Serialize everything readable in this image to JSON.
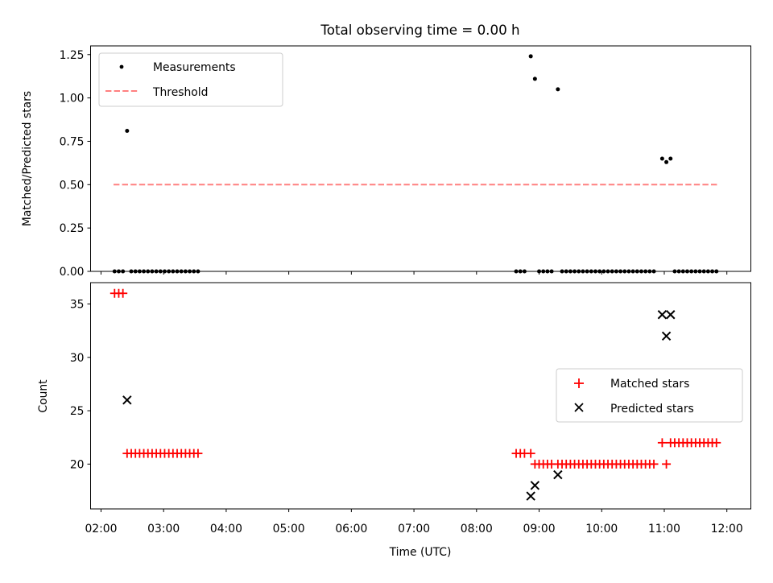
{
  "chart_data": [
    {
      "type": "scatter",
      "title": "Total observing time = 0.00 h",
      "ylabel": "Matched/Predicted stars",
      "ylim": [
        0,
        1.3
      ],
      "yticks": [
        0,
        0.25,
        0.5,
        0.75,
        1.0,
        1.25
      ],
      "ytick_labels": [
        "0.00",
        "0.25",
        "0.50",
        "0.75",
        "1.00",
        "1.25"
      ],
      "legend": {
        "placement": "top-left",
        "entries": [
          "Measurements",
          "Threshold"
        ]
      },
      "threshold": {
        "name": "Threshold",
        "value": 0.5,
        "x_range": [
          "02:12",
          "11:52"
        ],
        "color": "#ff8080"
      },
      "series": [
        {
          "name": "Measurements",
          "color": "#000000",
          "points": [
            [
              "02:13",
              0
            ],
            [
              "02:17",
              0
            ],
            [
              "02:21",
              0
            ],
            [
              "02:25",
              0.81
            ],
            [
              "02:29",
              0
            ],
            [
              "02:33",
              0
            ],
            [
              "02:37",
              0
            ],
            [
              "02:41",
              0
            ],
            [
              "02:45",
              0
            ],
            [
              "02:49",
              0
            ],
            [
              "02:53",
              0
            ],
            [
              "02:57",
              0
            ],
            [
              "03:01",
              0
            ],
            [
              "03:05",
              0
            ],
            [
              "03:09",
              0
            ],
            [
              "03:13",
              0
            ],
            [
              "03:17",
              0
            ],
            [
              "03:21",
              0
            ],
            [
              "03:25",
              0
            ],
            [
              "03:29",
              0
            ],
            [
              "03:33",
              0
            ],
            [
              "08:38",
              0
            ],
            [
              "08:42",
              0
            ],
            [
              "08:46",
              0
            ],
            [
              "08:52",
              1.24
            ],
            [
              "08:56",
              1.11
            ],
            [
              "09:00",
              0
            ],
            [
              "09:04",
              0
            ],
            [
              "09:08",
              0
            ],
            [
              "09:12",
              0
            ],
            [
              "09:18",
              1.05
            ],
            [
              "09:22",
              0
            ],
            [
              "09:26",
              0
            ],
            [
              "09:30",
              0
            ],
            [
              "09:34",
              0
            ],
            [
              "09:38",
              0
            ],
            [
              "09:42",
              0
            ],
            [
              "09:46",
              0
            ],
            [
              "09:50",
              0
            ],
            [
              "09:54",
              0
            ],
            [
              "09:58",
              0
            ],
            [
              "10:02",
              0
            ],
            [
              "10:06",
              0
            ],
            [
              "10:10",
              0
            ],
            [
              "10:14",
              0
            ],
            [
              "10:18",
              0
            ],
            [
              "10:22",
              0
            ],
            [
              "10:26",
              0
            ],
            [
              "10:30",
              0
            ],
            [
              "10:34",
              0
            ],
            [
              "10:38",
              0
            ],
            [
              "10:42",
              0
            ],
            [
              "10:46",
              0
            ],
            [
              "10:50",
              0
            ],
            [
              "10:58",
              0.65
            ],
            [
              "11:02",
              0.63
            ],
            [
              "11:06",
              0.65
            ],
            [
              "11:10",
              0
            ],
            [
              "11:14",
              0
            ],
            [
              "11:18",
              0
            ],
            [
              "11:22",
              0
            ],
            [
              "11:26",
              0
            ],
            [
              "11:30",
              0
            ],
            [
              "11:34",
              0
            ],
            [
              "11:38",
              0
            ],
            [
              "11:42",
              0
            ],
            [
              "11:46",
              0
            ],
            [
              "11:50",
              0
            ]
          ]
        }
      ]
    },
    {
      "type": "scatter",
      "xlabel": "Time (UTC)",
      "ylabel": "Count",
      "ylim": [
        15.8,
        37
      ],
      "yticks": [
        20,
        25,
        30,
        35
      ],
      "ytick_labels": [
        "20",
        "25",
        "30",
        "35"
      ],
      "xlim": [
        "01:50",
        "12:23"
      ],
      "xticks": [
        "02:00",
        "03:00",
        "04:00",
        "05:00",
        "06:00",
        "07:00",
        "08:00",
        "09:00",
        "10:00",
        "11:00",
        "12:00"
      ],
      "xtick_labels": [
        "02:00",
        "03:00",
        "04:00",
        "05:00",
        "06:00",
        "07:00",
        "08:00",
        "09:00",
        "10:00",
        "11:00",
        "12:00"
      ],
      "legend": {
        "placement": "center-right",
        "entries": [
          "Matched stars",
          "Predicted stars"
        ]
      },
      "series": [
        {
          "name": "Matched stars",
          "marker": "+",
          "color": "#ff0000",
          "points": [
            [
              "02:13",
              36
            ],
            [
              "02:17",
              36
            ],
            [
              "02:21",
              36
            ],
            [
              "02:25",
              21
            ],
            [
              "02:29",
              21
            ],
            [
              "02:33",
              21
            ],
            [
              "02:37",
              21
            ],
            [
              "02:41",
              21
            ],
            [
              "02:45",
              21
            ],
            [
              "02:49",
              21
            ],
            [
              "02:53",
              21
            ],
            [
              "02:57",
              21
            ],
            [
              "03:01",
              21
            ],
            [
              "03:05",
              21
            ],
            [
              "03:09",
              21
            ],
            [
              "03:13",
              21
            ],
            [
              "03:17",
              21
            ],
            [
              "03:21",
              21
            ],
            [
              "03:25",
              21
            ],
            [
              "03:29",
              21
            ],
            [
              "03:33",
              21
            ],
            [
              "08:38",
              21
            ],
            [
              "08:42",
              21
            ],
            [
              "08:46",
              21
            ],
            [
              "08:52",
              21
            ],
            [
              "08:56",
              20
            ],
            [
              "09:00",
              20
            ],
            [
              "09:04",
              20
            ],
            [
              "09:08",
              20
            ],
            [
              "09:12",
              20
            ],
            [
              "09:18",
              20
            ],
            [
              "09:22",
              20
            ],
            [
              "09:26",
              20
            ],
            [
              "09:30",
              20
            ],
            [
              "09:34",
              20
            ],
            [
              "09:38",
              20
            ],
            [
              "09:42",
              20
            ],
            [
              "09:46",
              20
            ],
            [
              "09:50",
              20
            ],
            [
              "09:54",
              20
            ],
            [
              "09:58",
              20
            ],
            [
              "10:02",
              20
            ],
            [
              "10:06",
              20
            ],
            [
              "10:10",
              20
            ],
            [
              "10:14",
              20
            ],
            [
              "10:18",
              20
            ],
            [
              "10:22",
              20
            ],
            [
              "10:26",
              20
            ],
            [
              "10:30",
              20
            ],
            [
              "10:34",
              20
            ],
            [
              "10:38",
              20
            ],
            [
              "10:42",
              20
            ],
            [
              "10:46",
              20
            ],
            [
              "10:50",
              20
            ],
            [
              "10:58",
              22
            ],
            [
              "11:02",
              20
            ],
            [
              "11:06",
              22
            ],
            [
              "11:10",
              22
            ],
            [
              "11:14",
              22
            ],
            [
              "11:18",
              22
            ],
            [
              "11:22",
              22
            ],
            [
              "11:26",
              22
            ],
            [
              "11:30",
              22
            ],
            [
              "11:34",
              22
            ],
            [
              "11:38",
              22
            ],
            [
              "11:42",
              22
            ],
            [
              "11:46",
              22
            ],
            [
              "11:50",
              22
            ]
          ]
        },
        {
          "name": "Predicted stars",
          "marker": "x",
          "color": "#000000",
          "points": [
            [
              "02:25",
              26
            ],
            [
              "08:52",
              17
            ],
            [
              "08:56",
              18
            ],
            [
              "09:18",
              19
            ],
            [
              "10:58",
              34
            ],
            [
              "11:02",
              32
            ],
            [
              "11:06",
              34
            ]
          ]
        }
      ]
    }
  ]
}
